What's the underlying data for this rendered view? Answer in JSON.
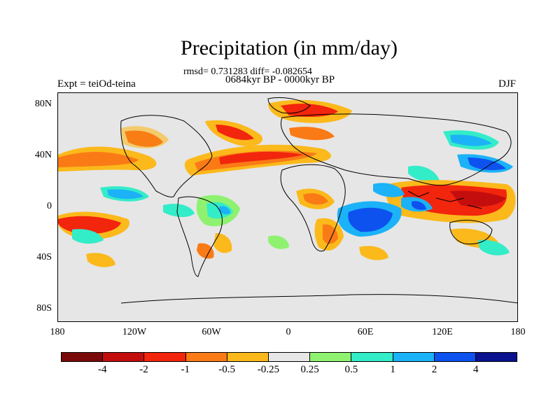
{
  "title": "Precipitation (in mm/day)",
  "stats": "rmsd= 0.731283 diff= -0.082654",
  "period": "0684kyr BP - 0000kyr BP",
  "experiment": "Expt = teiOd-teina",
  "season": "DJF",
  "lat_labels": [
    "80N",
    "40N",
    "0",
    "40S",
    "80S"
  ],
  "lon_labels": [
    "180",
    "120W",
    "60W",
    "0",
    "60E",
    "120E",
    "180"
  ],
  "colorbar": {
    "colors": [
      "#7a0a0a",
      "#c40e0e",
      "#f2250d",
      "#fa7a16",
      "#fbb91b",
      "#e6e6e6",
      "#8ef270",
      "#33ecc8",
      "#1cb2f7",
      "#0d52ef",
      "#0a1290"
    ],
    "labels": [
      "-4",
      "-2",
      "-1",
      "-0.5",
      "-0.25",
      "0.25",
      "0.5",
      "1",
      "2",
      "4"
    ]
  }
}
